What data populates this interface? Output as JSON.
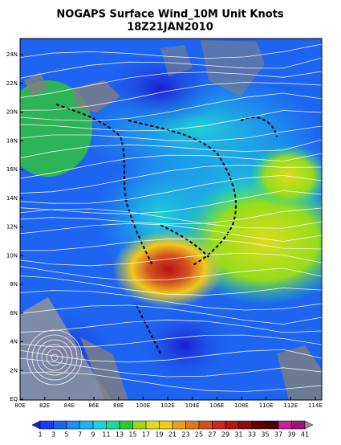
{
  "title": {
    "line1": "NOGAPS Surface Wind_10M Unit Knots",
    "line2": "18Z21JAN2010"
  },
  "lat_labels": [
    "24N",
    "22N",
    "20N",
    "18N",
    "16N",
    "14N",
    "12N",
    "10N",
    "8N",
    "6N",
    "4N",
    "2N",
    "EQ"
  ],
  "lon_labels": [
    "80E",
    "82E",
    "84E",
    "86E",
    "88E",
    "100E",
    "102E",
    "104E",
    "106E",
    "108E",
    "110E",
    "112E",
    "114E"
  ],
  "colorbar": {
    "labels": [
      "1",
      "3",
      "5",
      "7",
      "9",
      "11",
      "13",
      "15",
      "17",
      "19",
      "21",
      "23",
      "25",
      "27",
      "29",
      "31",
      "33",
      "35",
      "37",
      "39",
      "41"
    ],
    "colors": [
      "#1c1cd0",
      "#1e3cf0",
      "#1e64f0",
      "#1e8cf0",
      "#1eb4f0",
      "#1ed2d2",
      "#1edc96",
      "#32c832",
      "#96dc1e",
      "#dcdc1e",
      "#f0c81e",
      "#e6a01e",
      "#dc781e",
      "#d2501e",
      "#c8281e",
      "#b41414",
      "#8c0a0a",
      "#640000",
      "#500000",
      "#c81e96",
      "#a01478",
      "#969696"
    ]
  }
}
